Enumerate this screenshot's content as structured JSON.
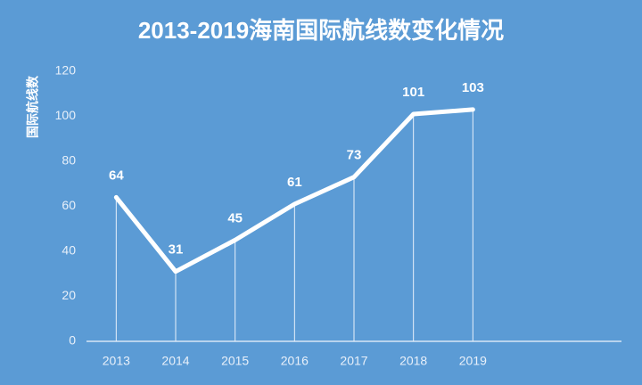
{
  "chart_data": {
    "type": "line",
    "title": "2013-2019海南国际航线数变化情况",
    "y_label": "国际航线数",
    "categories": [
      "2013",
      "2014",
      "2015",
      "2016",
      "2017",
      "2018",
      "2019"
    ],
    "values": [
      64,
      31,
      45,
      61,
      73,
      101,
      103
    ],
    "color": "#ffffff",
    "ylim": [
      0,
      120
    ],
    "yticks": [
      0,
      20,
      40,
      60,
      80,
      100,
      120
    ],
    "drop_lines": true
  }
}
